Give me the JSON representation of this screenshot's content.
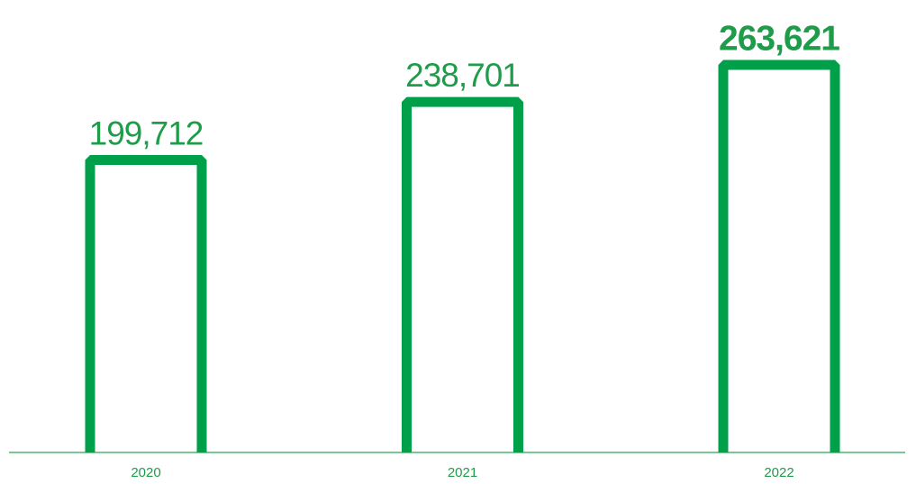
{
  "chart_data": {
    "type": "bar",
    "categories": [
      "2020",
      "2021",
      "2022"
    ],
    "values": [
      199712,
      238701,
      263621
    ],
    "value_labels": [
      "199,712",
      "238,701",
      "263,621"
    ],
    "color": "#00a04b",
    "ylim": [
      0,
      300000
    ]
  }
}
